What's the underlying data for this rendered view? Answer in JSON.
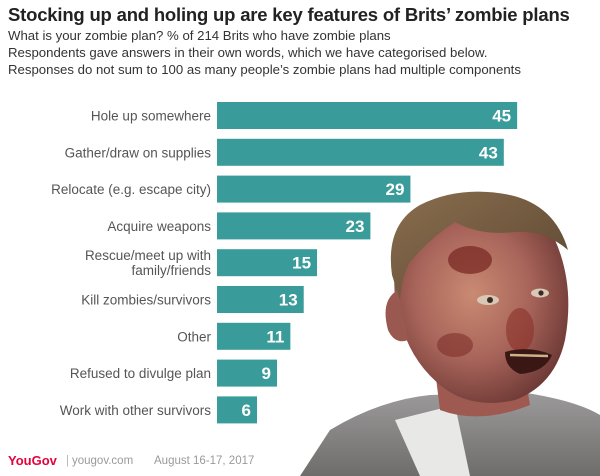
{
  "title": "Stocking up and holing up are key features of Brits’ zombie plans",
  "subtitle_lines": [
    "What is your zombie plan? % of 214 Brits who have zombie plans",
    "Respondents gave answers in their own words, which we have categorised below.",
    "Responses do not sum to 100 as many people’s zombie plans had multiple components"
  ],
  "chart_data": {
    "type": "bar",
    "orientation": "horizontal",
    "categories": [
      [
        "Hole up somewhere"
      ],
      [
        "Gather/draw on supplies"
      ],
      [
        "Relocate (e.g. escape city)"
      ],
      [
        "Acquire weapons"
      ],
      [
        "Rescue/meet up with",
        "family/friends"
      ],
      [
        "Kill zombies/survivors"
      ],
      [
        "Other"
      ],
      [
        "Refused to divulge plan"
      ],
      [
        "Work with other survivors"
      ]
    ],
    "values": [
      45,
      43,
      29,
      23,
      15,
      13,
      11,
      9,
      6
    ],
    "xlim": [
      0,
      50
    ],
    "bar_color": "#3a9c9a",
    "label_color": "#ffffff",
    "grid": false,
    "legend": "none"
  },
  "footer": {
    "brand": "YouGov",
    "separator": "|",
    "site": "yougov.com",
    "date": "August 16-17, 2017"
  },
  "colors": {
    "brand": "#e4003b",
    "title": "#222222",
    "category_text": "#555555"
  }
}
